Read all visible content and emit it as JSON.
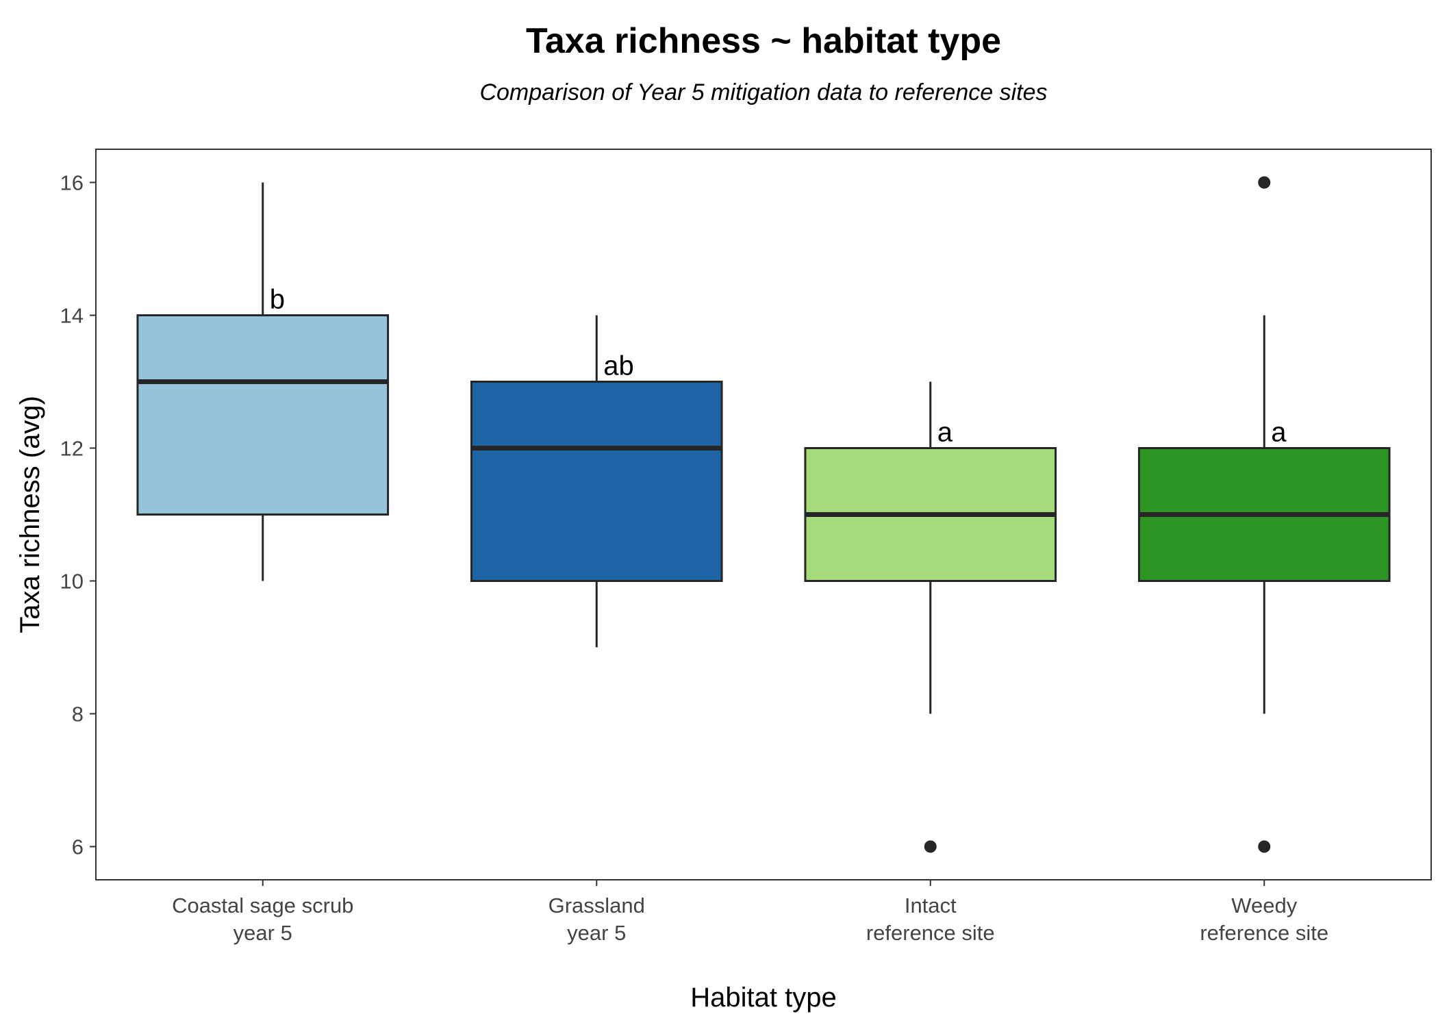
{
  "chart_data": {
    "type": "box",
    "title": "Taxa richness ~ habitat type",
    "subtitle": "Comparison of Year 5 mitigation data to reference sites",
    "xlabel": "Habitat type",
    "ylabel": "Taxa richness (avg)",
    "ylim": [
      5.5,
      16.5
    ],
    "yticks": [
      6,
      8,
      10,
      12,
      14,
      16
    ],
    "grid": false,
    "categories": [
      [
        "Coastal sage scrub",
        "year 5"
      ],
      [
        "Grassland",
        "year 5"
      ],
      [
        "Intact",
        "reference site"
      ],
      [
        "Weedy",
        "reference site"
      ]
    ],
    "boxes": [
      {
        "whisker_low": 10,
        "q1": 11,
        "median": 13,
        "q3": 14,
        "whisker_high": 16,
        "outliers": [],
        "letter": "b",
        "fill": "#97c3dc"
      },
      {
        "whisker_low": 9,
        "q1": 10,
        "median": 12,
        "q3": 13,
        "whisker_high": 14,
        "outliers": [],
        "letter": "ab",
        "fill": "#1f64a5"
      },
      {
        "whisker_low": 8,
        "q1": 10,
        "median": 11,
        "q3": 12,
        "whisker_high": 13,
        "outliers": [
          6
        ],
        "letter": "a",
        "fill": "#a5dc7b"
      },
      {
        "whisker_low": 8,
        "q1": 10,
        "median": 11,
        "q3": 12,
        "whisker_high": 14,
        "outliers": [
          6,
          16
        ],
        "letter": "a",
        "fill": "#2e9424"
      }
    ],
    "colors": {
      "outline": "#262626",
      "outlier": "#262626",
      "axis_text": "#444444"
    }
  }
}
